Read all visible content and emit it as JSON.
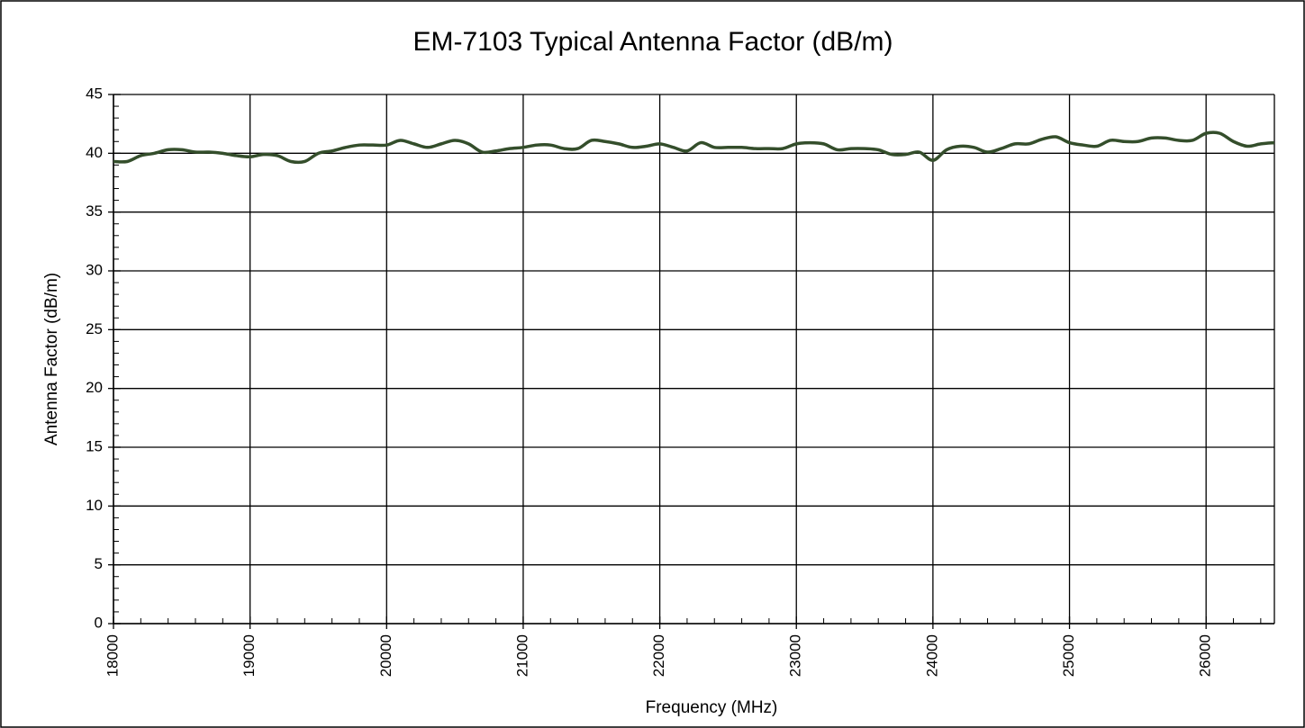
{
  "chart_data": {
    "type": "line",
    "title": "EM-7103 Typical Antenna Factor (dB/m)",
    "xlabel": "Frequency (MHz)",
    "ylabel": "Antenna Factor (dB/m)",
    "x": [
      18000,
      18100,
      18200,
      18300,
      18400,
      18500,
      18600,
      18700,
      18800,
      18900,
      19000,
      19100,
      19200,
      19300,
      19400,
      19500,
      19600,
      19700,
      19800,
      19900,
      20000,
      20100,
      20200,
      20300,
      20400,
      20500,
      20600,
      20700,
      20800,
      20900,
      21000,
      21100,
      21200,
      21300,
      21400,
      21500,
      21600,
      21700,
      21800,
      21900,
      22000,
      22100,
      22200,
      22300,
      22400,
      22500,
      22600,
      22700,
      22800,
      22900,
      23000,
      23100,
      23200,
      23300,
      23400,
      23500,
      23600,
      23700,
      23800,
      23900,
      24000,
      24100,
      24200,
      24300,
      24400,
      24500,
      24600,
      24700,
      24800,
      24900,
      25000,
      25100,
      25200,
      25300,
      25400,
      25500,
      25600,
      25700,
      25800,
      25900,
      26000,
      26100,
      26200,
      26300,
      26400,
      26500
    ],
    "series": [
      {
        "name": "Antenna Factor",
        "color": "#344e2b",
        "values": [
          39.3,
          39.3,
          39.8,
          40.0,
          40.3,
          40.3,
          40.1,
          40.1,
          40.0,
          39.8,
          39.7,
          39.9,
          39.8,
          39.3,
          39.3,
          40.0,
          40.2,
          40.5,
          40.7,
          40.7,
          40.7,
          41.1,
          40.8,
          40.5,
          40.8,
          41.1,
          40.8,
          40.1,
          40.2,
          40.4,
          40.5,
          40.7,
          40.7,
          40.4,
          40.4,
          41.1,
          41.0,
          40.8,
          40.5,
          40.6,
          40.8,
          40.5,
          40.2,
          40.9,
          40.5,
          40.5,
          40.5,
          40.4,
          40.4,
          40.4,
          40.8,
          40.9,
          40.8,
          40.3,
          40.4,
          40.4,
          40.3,
          39.9,
          39.9,
          40.1,
          39.4,
          40.3,
          40.6,
          40.5,
          40.1,
          40.4,
          40.8,
          40.8,
          41.2,
          41.4,
          40.9,
          40.7,
          40.6,
          41.1,
          41.0,
          41.0,
          41.3,
          41.3,
          41.1,
          41.1,
          41.7,
          41.7,
          41.0,
          40.6,
          40.8,
          40.9
        ]
      }
    ],
    "xlim": [
      18000,
      26500
    ],
    "xticks": [
      18000,
      19000,
      20000,
      21000,
      22000,
      23000,
      24000,
      25000,
      26000
    ],
    "ylim": [
      0,
      45
    ],
    "yticks": [
      0,
      5,
      10,
      15,
      20,
      25,
      30,
      35,
      40,
      45
    ],
    "grid": true
  }
}
